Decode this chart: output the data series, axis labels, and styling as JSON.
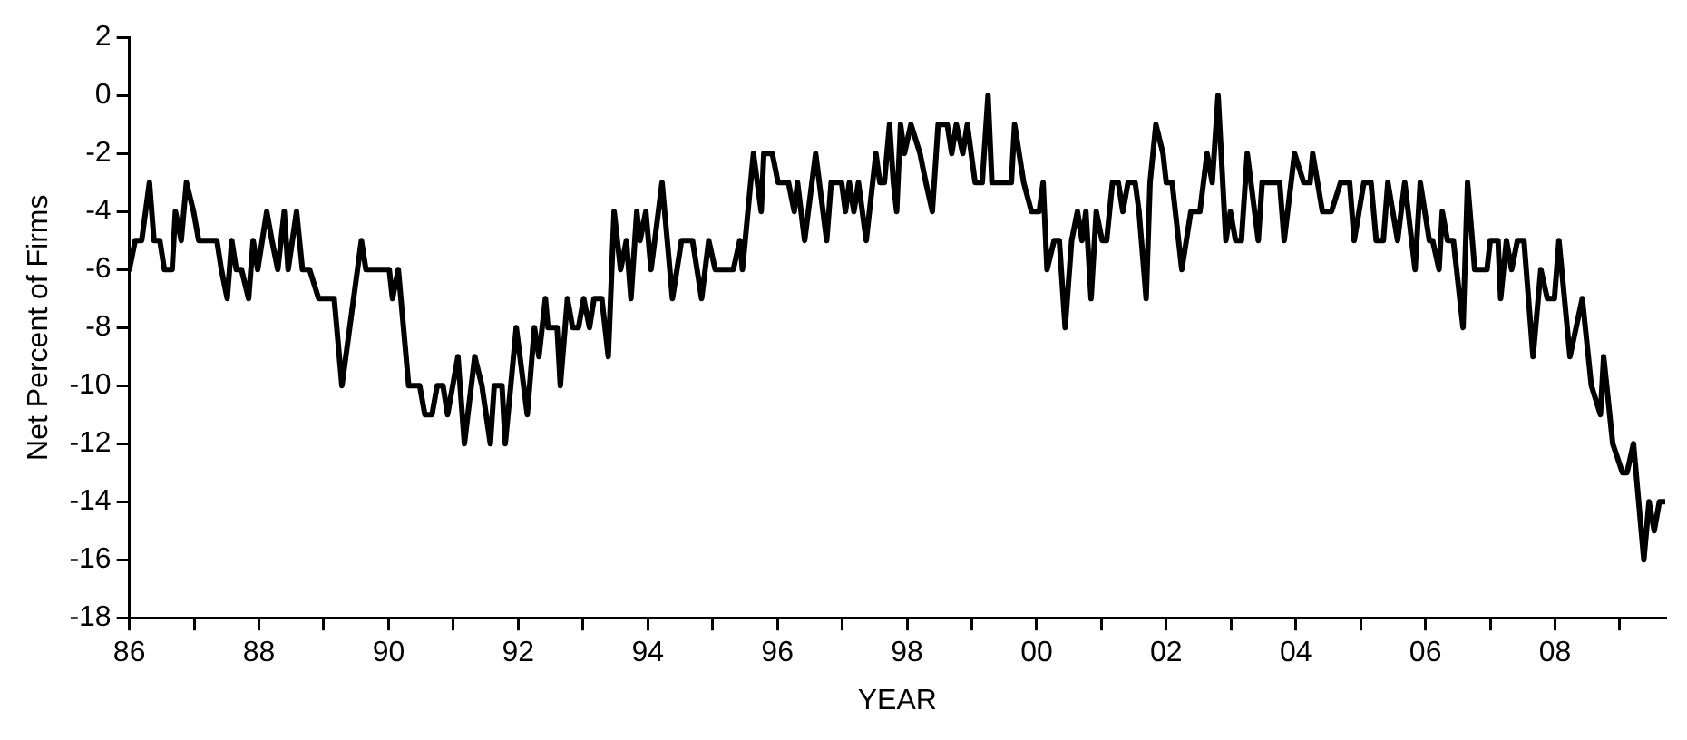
{
  "chart_data": {
    "type": "line",
    "xlabel": "YEAR",
    "ylabel": "Net Percent of Firms",
    "x": [
      1986.0,
      1986.09,
      1986.19,
      1986.31,
      1986.38,
      1986.47,
      1986.54,
      1986.66,
      1986.71,
      1986.8,
      1986.88,
      1986.99,
      1987.07,
      1987.35,
      1987.42,
      1987.51,
      1987.58,
      1987.65,
      1987.73,
      1987.84,
      1987.91,
      1987.98,
      1988.12,
      1988.2,
      1988.29,
      1988.39,
      1988.45,
      1988.58,
      1988.67,
      1988.78,
      1988.92,
      1989.16,
      1989.28,
      1989.4,
      1989.58,
      1989.65,
      1990.01,
      1990.06,
      1990.15,
      1990.31,
      1990.48,
      1990.56,
      1990.67,
      1990.75,
      1990.84,
      1990.91,
      1991.07,
      1991.17,
      1991.33,
      1991.44,
      1991.57,
      1991.63,
      1991.75,
      1991.8,
      1991.97,
      1992.14,
      1992.25,
      1992.32,
      1992.42,
      1992.46,
      1992.6,
      1992.65,
      1992.76,
      1992.84,
      1992.93,
      1993.01,
      1993.1,
      1993.17,
      1993.29,
      1993.39,
      1993.48,
      1993.58,
      1993.67,
      1993.74,
      1993.83,
      1993.88,
      1993.97,
      1994.05,
      1994.22,
      1994.38,
      1994.52,
      1994.69,
      1994.83,
      1994.94,
      1995.04,
      1995.32,
      1995.42,
      1995.46,
      1995.63,
      1995.75,
      1995.79,
      1995.92,
      1996.01,
      1996.17,
      1996.26,
      1996.31,
      1996.42,
      1996.59,
      1996.76,
      1996.83,
      1996.99,
      1997.05,
      1997.11,
      1997.18,
      1997.25,
      1997.37,
      1997.52,
      1997.58,
      1997.65,
      1997.73,
      1997.79,
      1997.84,
      1997.9,
      1997.96,
      1998.06,
      1998.2,
      1998.29,
      1998.39,
      1998.48,
      1998.62,
      1998.69,
      1998.76,
      1998.86,
      1998.93,
      1999.05,
      1999.16,
      1999.25,
      1999.31,
      1999.61,
      1999.66,
      1999.8,
      1999.92,
      2000.04,
      2000.1,
      2000.16,
      2000.27,
      2000.35,
      2000.44,
      2000.54,
      2000.63,
      2000.7,
      2000.76,
      2000.84,
      2000.92,
      2001.01,
      2001.08,
      2001.17,
      2001.26,
      2001.33,
      2001.41,
      2001.52,
      2001.58,
      2001.69,
      2001.75,
      2001.84,
      2001.95,
      2002.0,
      2002.09,
      2002.24,
      2002.38,
      2002.52,
      2002.63,
      2002.71,
      2002.8,
      2002.92,
      2002.99,
      2003.07,
      2003.16,
      2003.25,
      2003.42,
      2003.48,
      2003.75,
      2003.82,
      2003.98,
      2004.12,
      2004.22,
      2004.26,
      2004.41,
      2004.55,
      2004.69,
      2004.83,
      2004.9,
      2005.05,
      2005.16,
      2005.24,
      2005.35,
      2005.42,
      2005.57,
      2005.68,
      2005.84,
      2005.92,
      2006.06,
      2006.11,
      2006.21,
      2006.26,
      2006.34,
      2006.43,
      2006.58,
      2006.65,
      2006.76,
      2006.95,
      2007.0,
      2007.12,
      2007.16,
      2007.25,
      2007.33,
      2007.42,
      2007.52,
      2007.66,
      2007.78,
      2007.88,
      2007.99,
      2008.06,
      2008.23,
      2008.42,
      2008.56,
      2008.7,
      2008.75,
      2008.89,
      2009.04,
      2009.11,
      2009.21,
      2009.37,
      2009.45,
      2009.53,
      2009.61,
      2009.69
    ],
    "series": [
      {
        "color": "#000000",
        "values": [
          -6,
          -5,
          -5,
          -3,
          -5,
          -5,
          -6,
          -6,
          -4,
          -5,
          -3,
          -4,
          -5,
          -5,
          -6,
          -7,
          -5,
          -6,
          -6,
          -7,
          -5,
          -6,
          -4,
          -5,
          -6,
          -4,
          -6,
          -4,
          -6,
          -6,
          -7,
          -7,
          -10,
          -8,
          -5,
          -6,
          -6,
          -7,
          -6,
          -10,
          -10,
          -11,
          -11,
          -10,
          -10,
          -11,
          -9,
          -12,
          -9,
          -10,
          -12,
          -10,
          -10,
          -12,
          -8,
          -11,
          -8,
          -9,
          -7,
          -8,
          -8,
          -10,
          -7,
          -8,
          -8,
          -7,
          -8,
          -7,
          -7,
          -9,
          -4,
          -6,
          -5,
          -7,
          -4,
          -5,
          -4,
          -6,
          -3,
          -7,
          -5,
          -5,
          -7,
          -5,
          -6,
          -6,
          -5,
          -6,
          -2,
          -4,
          -2,
          -2,
          -3,
          -3,
          -4,
          -3,
          -5,
          -2,
          -5,
          -3,
          -3,
          -4,
          -3,
          -4,
          -3,
          -5,
          -2,
          -3,
          -3,
          -1,
          -3,
          -4,
          -1,
          -2,
          -1,
          -2,
          -3,
          -4,
          -1,
          -1,
          -2,
          -1,
          -2,
          -1,
          -3,
          -3,
          0,
          -3,
          -3,
          -1,
          -3,
          -4,
          -4,
          -3,
          -6,
          -5,
          -5,
          -8,
          -5,
          -4,
          -5,
          -4,
          -7,
          -4,
          -5,
          -5,
          -3,
          -3,
          -4,
          -3,
          -3,
          -4,
          -7,
          -3,
          -1,
          -2,
          -3,
          -3,
          -6,
          -4,
          -4,
          -2,
          -3,
          0,
          -5,
          -4,
          -5,
          -5,
          -2,
          -5,
          -3,
          -3,
          -5,
          -2,
          -3,
          -3,
          -2,
          -4,
          -4,
          -3,
          -3,
          -5,
          -3,
          -3,
          -5,
          -5,
          -3,
          -5,
          -3,
          -6,
          -3,
          -5,
          -5,
          -6,
          -4,
          -5,
          -5,
          -8,
          -3,
          -6,
          -6,
          -5,
          -5,
          -7,
          -5,
          -6,
          -5,
          -5,
          -9,
          -6,
          -7,
          -7,
          -5,
          -9,
          -7,
          -10,
          -11,
          -9,
          -12,
          -13,
          -13,
          -12,
          -16,
          -14,
          -15,
          -14,
          -14
        ]
      }
    ],
    "xlim": [
      1986,
      2009.7
    ],
    "xticks": [
      {
        "value": 1986,
        "label": "86"
      },
      {
        "value": 1987,
        "label": null
      },
      {
        "value": 1988,
        "label": "88"
      },
      {
        "value": 1989,
        "label": null
      },
      {
        "value": 1990,
        "label": "90"
      },
      {
        "value": 1991,
        "label": null
      },
      {
        "value": 1992,
        "label": "92"
      },
      {
        "value": 1993,
        "label": null
      },
      {
        "value": 1994,
        "label": "94"
      },
      {
        "value": 1995,
        "label": null
      },
      {
        "value": 1996,
        "label": "96"
      },
      {
        "value": 1997,
        "label": null
      },
      {
        "value": 1998,
        "label": "98"
      },
      {
        "value": 1999,
        "label": null
      },
      {
        "value": 2000,
        "label": "00"
      },
      {
        "value": 2001,
        "label": null
      },
      {
        "value": 2002,
        "label": "02"
      },
      {
        "value": 2003,
        "label": null
      },
      {
        "value": 2004,
        "label": "04"
      },
      {
        "value": 2005,
        "label": null
      },
      {
        "value": 2006,
        "label": "06"
      },
      {
        "value": 2007,
        "label": null
      },
      {
        "value": 2008,
        "label": "08"
      },
      {
        "value": 2009,
        "label": null
      }
    ],
    "ylim": [
      -18,
      2
    ],
    "yticks": [
      -18,
      -16,
      -14,
      -12,
      -10,
      -8,
      -6,
      -4,
      -2,
      0,
      2
    ],
    "grid": false,
    "legend": false
  }
}
